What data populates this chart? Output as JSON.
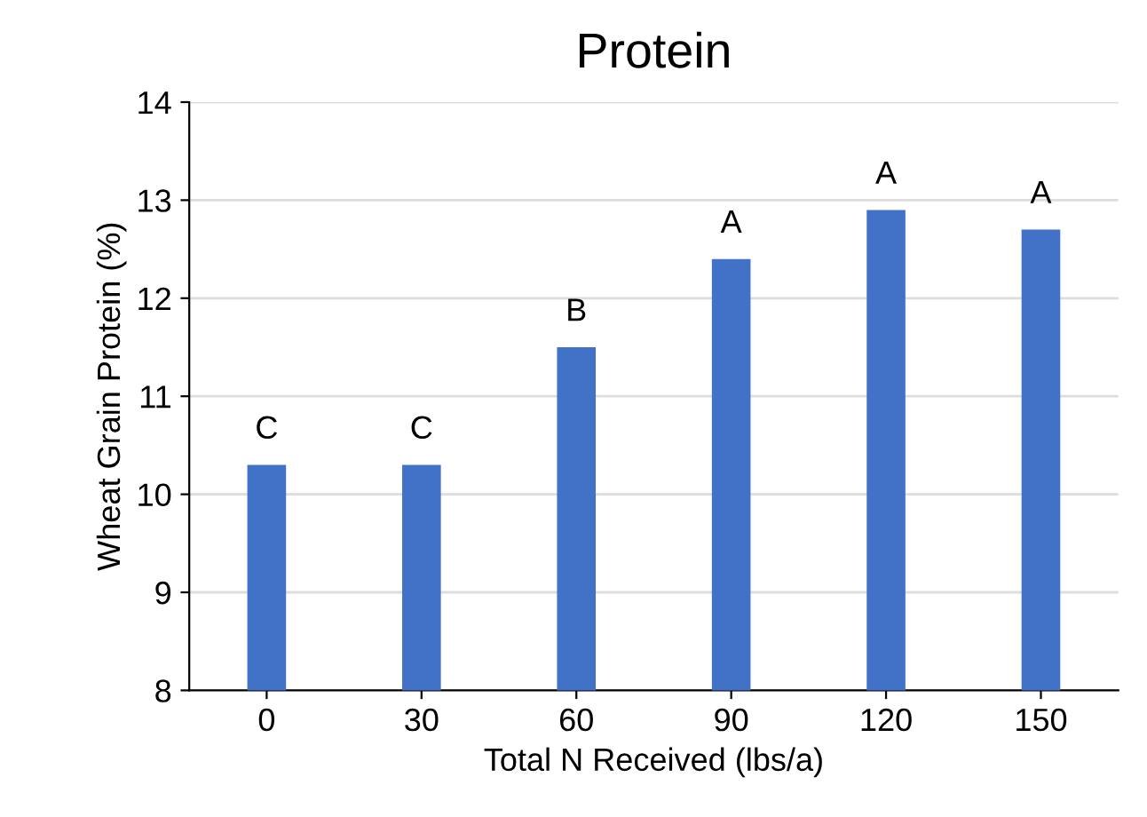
{
  "chart_data": {
    "type": "bar",
    "title": "Protein",
    "xlabel": "Total N Received (lbs/a)",
    "ylabel": "Wheat Grain Protein (%)",
    "categories": [
      "0",
      "30",
      "60",
      "90",
      "120",
      "150"
    ],
    "values": [
      10.3,
      10.3,
      11.5,
      12.4,
      12.9,
      12.7
    ],
    "color": "#4272c8",
    "ylim": [
      8,
      14
    ],
    "yticks": [
      8,
      9,
      10,
      11,
      12,
      13,
      14
    ],
    "grid": "y",
    "annotations": [
      {
        "text": "C",
        "x": "0",
        "y": 10.3
      },
      {
        "text": "C",
        "x": "30",
        "y": 10.3
      },
      {
        "text": "B",
        "x": "60",
        "y": 11.5
      },
      {
        "text": "A",
        "x": "90",
        "y": 12.4
      },
      {
        "text": "A",
        "x": "120",
        "y": 12.9
      },
      {
        "text": "A",
        "x": "150",
        "y": 12.7
      }
    ]
  }
}
